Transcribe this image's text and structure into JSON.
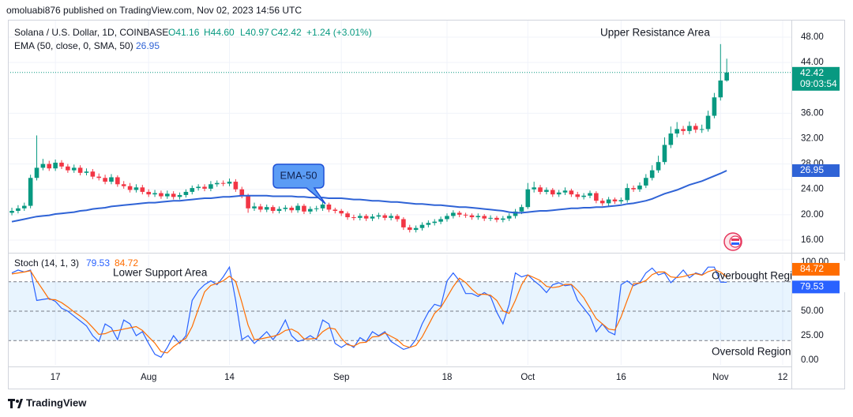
{
  "header": "omoluabi876 published on TradingView.com, Nov 02, 2023 14:56 UTC",
  "footer": "TradingView",
  "chart_data": [
    {
      "type": "candlestick",
      "title": "Solana / U.S. Dollar, 1D, COINBASE",
      "readout": [
        "O41.16",
        "H44.60",
        "L40.97",
        "C42.42",
        "+1.24 (+3.01%)"
      ],
      "countdown": "09:03:54",
      "annotations": [
        "Upper Resistance Area",
        "EMA-50"
      ],
      "up_color": "#089981",
      "down_color": "#f23645",
      "grid": true,
      "xlim": [
        -0.64,
        125.4
      ],
      "xticks": [
        {
          "value": 7,
          "label": "17"
        },
        {
          "value": 22,
          "label": "Aug"
        },
        {
          "value": 35,
          "label": "14"
        },
        {
          "value": 53,
          "label": "Sep"
        },
        {
          "value": 70,
          "label": "18"
        },
        {
          "value": 83,
          "label": "Oct"
        },
        {
          "value": 98,
          "label": "16"
        },
        {
          "value": 114,
          "label": "Nov"
        },
        {
          "value": 124,
          "label": "12"
        }
      ],
      "ylim": [
        14.25,
        50.74
      ],
      "yticks": [
        {
          "value": 16,
          "label": "16.00"
        },
        {
          "value": 20,
          "label": "20.00"
        },
        {
          "value": 24,
          "label": "24.00"
        },
        {
          "value": 28,
          "label": "28.00"
        },
        {
          "value": 32,
          "label": "32.00"
        },
        {
          "value": 36,
          "label": "36.00"
        },
        {
          "value": 44,
          "label": "44.00"
        },
        {
          "value": 48,
          "label": "48.00"
        }
      ],
      "open": [
        20.3,
        20.6,
        21.0,
        21.4,
        25.8,
        27.4,
        28.0,
        27.3,
        28.2,
        27.6,
        27.0,
        27.4,
        26.6,
        26.8,
        26.0,
        25.8,
        25.2,
        25.9,
        24.8,
        24.5,
        23.9,
        24.3,
        23.6,
        23.2,
        23.4,
        22.9,
        23.3,
        22.8,
        23.1,
        23.6,
        24.2,
        24.4,
        24.1,
        24.8,
        25.0,
        24.9,
        25.2,
        24.0,
        23.0,
        21.0,
        21.3,
        20.8,
        21.2,
        20.6,
        20.9,
        21.1,
        20.7,
        21.4,
        20.5,
        20.9,
        21.0,
        21.6,
        20.8,
        20.6,
        20.2,
        19.6,
        19.5,
        19.8,
        19.4,
        19.7,
        19.9,
        19.5,
        19.8,
        19.3,
        18.0,
        17.6,
        17.9,
        18.4,
        18.7,
        18.9,
        19.3,
        19.8,
        20.3,
        20.0,
        19.9,
        19.6,
        19.8,
        19.4,
        19.5,
        19.2,
        19.4,
        19.8,
        20.5,
        21.2,
        24.0,
        24.3,
        23.6,
        23.9,
        23.2,
        23.5,
        23.8,
        23.2,
        22.8,
        23.0,
        23.4,
        22.2,
        21.8,
        22.4,
        22.1,
        22.3,
        24.2,
        24.0,
        24.6,
        25.8,
        27.0,
        28.3,
        31.0,
        32.8,
        33.5,
        33.2,
        34.0,
        33.4,
        33.5,
        35.6,
        38.5,
        41.16
      ],
      "high": [
        21.1,
        21.5,
        21.9,
        26.3,
        32.5,
        28.8,
        28.5,
        28.7,
        28.6,
        28.0,
        27.9,
        27.8,
        27.3,
        27.2,
        26.5,
        26.3,
        26.4,
        26.2,
        25.3,
        25.0,
        24.8,
        24.7,
        24.0,
        23.9,
        23.8,
        23.8,
        23.7,
        23.5,
        24.0,
        24.6,
        24.8,
        24.8,
        25.3,
        25.4,
        25.4,
        25.7,
        25.6,
        24.4,
        23.3,
        21.9,
        21.7,
        21.6,
        21.5,
        21.3,
        21.5,
        21.4,
        21.8,
        21.7,
        21.3,
        21.4,
        22.2,
        21.9,
        21.1,
        20.9,
        20.5,
        20.0,
        20.2,
        20.1,
        20.1,
        20.3,
        20.2,
        20.2,
        20.1,
        19.6,
        18.4,
        18.3,
        18.8,
        19.1,
        19.3,
        19.7,
        20.2,
        20.7,
        20.6,
        20.3,
        20.2,
        20.2,
        20.1,
        19.9,
        19.8,
        19.8,
        20.2,
        20.9,
        21.6,
        25.0,
        25.2,
        24.7,
        24.3,
        24.2,
        23.9,
        24.3,
        24.1,
        23.6,
        23.4,
        23.8,
        23.7,
        22.6,
        22.8,
        22.7,
        22.7,
        24.9,
        24.6,
        25.1,
        26.4,
        27.8,
        29.3,
        32.2,
        33.9,
        34.6,
        34.0,
        34.7,
        34.4,
        34.2,
        36.4,
        39.2,
        46.9,
        44.6
      ],
      "low": [
        19.9,
        20.2,
        20.6,
        21.0,
        25.4,
        27.0,
        26.9,
        26.9,
        27.2,
        26.6,
        26.6,
        26.2,
        26.2,
        25.6,
        25.4,
        24.8,
        24.8,
        24.4,
        24.1,
        23.5,
        23.5,
        23.2,
        22.8,
        22.8,
        22.5,
        22.5,
        22.4,
        22.4,
        22.7,
        23.2,
        23.8,
        23.7,
        23.7,
        24.4,
        24.5,
        24.5,
        23.6,
        22.6,
        20.3,
        20.6,
        20.4,
        20.4,
        20.2,
        20.2,
        20.5,
        20.3,
        20.3,
        20.1,
        20.1,
        20.5,
        20.6,
        20.4,
        20.2,
        19.8,
        19.2,
        19.1,
        19.1,
        19.0,
        19.0,
        19.3,
        19.1,
        19.1,
        18.9,
        17.6,
        17.2,
        17.2,
        17.5,
        18.0,
        18.3,
        18.5,
        18.9,
        19.4,
        19.6,
        19.5,
        19.2,
        19.2,
        19.0,
        19.0,
        18.8,
        18.8,
        19.0,
        19.4,
        20.1,
        20.9,
        23.5,
        23.2,
        23.2,
        22.8,
        22.8,
        23.1,
        22.8,
        22.4,
        22.4,
        22.6,
        21.8,
        21.4,
        21.4,
        21.7,
        21.7,
        21.9,
        23.6,
        23.6,
        24.2,
        25.4,
        26.6,
        27.9,
        30.5,
        32.2,
        32.6,
        32.7,
        32.9,
        32.9,
        33.1,
        35.2,
        38.0,
        40.97
      ],
      "close": [
        20.6,
        21.0,
        21.4,
        25.8,
        27.4,
        28.0,
        27.3,
        28.2,
        27.6,
        27.0,
        27.4,
        26.6,
        26.8,
        26.0,
        25.8,
        25.2,
        25.9,
        24.8,
        24.5,
        23.9,
        24.3,
        23.6,
        23.2,
        23.4,
        22.9,
        23.3,
        22.8,
        23.1,
        23.6,
        24.2,
        24.4,
        24.1,
        24.8,
        25.0,
        24.9,
        25.2,
        24.0,
        23.0,
        21.0,
        21.3,
        20.8,
        21.2,
        20.6,
        20.9,
        21.1,
        20.7,
        21.4,
        20.5,
        20.9,
        21.0,
        21.6,
        20.8,
        20.6,
        20.2,
        19.6,
        19.5,
        19.8,
        19.4,
        19.7,
        19.9,
        19.5,
        19.8,
        19.3,
        18.0,
        17.6,
        17.9,
        18.4,
        18.7,
        18.9,
        19.3,
        19.8,
        20.3,
        20.0,
        19.9,
        19.6,
        19.8,
        19.4,
        19.5,
        19.2,
        19.4,
        19.8,
        20.5,
        21.2,
        24.0,
        24.3,
        23.6,
        23.9,
        23.2,
        23.5,
        23.8,
        23.2,
        22.8,
        23.0,
        23.4,
        22.2,
        21.8,
        22.4,
        22.1,
        22.3,
        24.2,
        24.0,
        24.6,
        25.8,
        27.0,
        28.3,
        31.0,
        32.8,
        33.5,
        33.2,
        34.0,
        33.4,
        33.5,
        35.6,
        38.5,
        41.16,
        42.42
      ],
      "series": [
        {
          "name": "EMA (50, close, 0, SMA, 50)",
          "color": "#2f63d6",
          "values": [
            18.9,
            19.1,
            19.3,
            19.5,
            19.7,
            19.8,
            19.9,
            20.1,
            20.2,
            20.3,
            20.4,
            20.6,
            20.7,
            20.9,
            21.0,
            21.1,
            21.3,
            21.4,
            21.5,
            21.6,
            21.7,
            21.8,
            21.9,
            21.9,
            22.0,
            22.1,
            22.2,
            22.2,
            22.3,
            22.4,
            22.5,
            22.6,
            22.6,
            22.7,
            22.8,
            22.8,
            22.9,
            23.0,
            23.0,
            23.0,
            23.0,
            23.0,
            22.9,
            22.9,
            22.9,
            22.9,
            22.8,
            22.8,
            22.7,
            22.7,
            22.7,
            22.6,
            22.6,
            22.6,
            22.5,
            22.4,
            22.4,
            22.3,
            22.2,
            22.2,
            22.1,
            22.0,
            22.0,
            21.9,
            21.8,
            21.7,
            21.7,
            21.6,
            21.5,
            21.5,
            21.4,
            21.3,
            21.2,
            21.2,
            21.1,
            21.0,
            20.9,
            20.8,
            20.7,
            20.6,
            20.4,
            20.3,
            20.3,
            20.4,
            20.5,
            20.6,
            20.6,
            20.7,
            20.8,
            20.9,
            21.0,
            21.0,
            21.1,
            21.1,
            21.2,
            21.2,
            21.3,
            21.4,
            21.5,
            21.7,
            21.8,
            22.0,
            22.2,
            22.5,
            22.9,
            23.3,
            23.6,
            23.9,
            24.3,
            24.7,
            25.0,
            25.3,
            25.7,
            26.1,
            26.5,
            26.95
          ]
        }
      ]
    },
    {
      "type": "line",
      "title": "Stoch (14, 1, 3)",
      "annotations": [
        "Lower Support Area",
        "Overbought Region",
        "Oversold Region"
      ],
      "ylim": [
        -4.84,
        108.06
      ],
      "yticks": [
        {
          "value": 0,
          "label": "0.00"
        },
        {
          "value": 25,
          "label": "25.00"
        },
        {
          "value": 50,
          "label": "50.00"
        },
        {
          "value": 100,
          "label": "100.00"
        }
      ],
      "levels": [
        80,
        50,
        20
      ],
      "series": [
        {
          "color": "#2962ff",
          "values": [
            89,
            92,
            90,
            92,
            61,
            62,
            63,
            60,
            53,
            50,
            45,
            40,
            35,
            25,
            19,
            37,
            33,
            21,
            41,
            37,
            25,
            29,
            17,
            6,
            3,
            13,
            25,
            17,
            25,
            61,
            71,
            77,
            81,
            77,
            85,
            95,
            61,
            21,
            25,
            17,
            23,
            29,
            21,
            29,
            41,
            25,
            19,
            21,
            25,
            21,
            41,
            37,
            17,
            13,
            17,
            13,
            23,
            19,
            29,
            25,
            29,
            19,
            15,
            11,
            13,
            21,
            37,
            49,
            57,
            55,
            81,
            89,
            81,
            68,
            68,
            65,
            69,
            65,
            49,
            37,
            57,
            89,
            85,
            87,
            81,
            76,
            69,
            77,
            79,
            76,
            77,
            61,
            53,
            45,
            29,
            37,
            29,
            26,
            77,
            81,
            76,
            79,
            89,
            94,
            87,
            89,
            79,
            85,
            92,
            84,
            89,
            87,
            95,
            95,
            79.63,
            79.53
          ]
        },
        {
          "color": "#ff6d00",
          "values": [
            88,
            89,
            90,
            91.3,
            81,
            71.7,
            62,
            61.7,
            58.7,
            54.3,
            49.3,
            45,
            40,
            33.3,
            26.3,
            27,
            29.7,
            30.3,
            31.7,
            33,
            34.3,
            30.3,
            23.7,
            17.3,
            8.7,
            7.3,
            13.7,
            18.3,
            22.3,
            34.3,
            52.3,
            69.7,
            76.3,
            78.3,
            81,
            85.7,
            80.3,
            59,
            35.7,
            21,
            21.7,
            23,
            24.3,
            26.3,
            30.3,
            31.7,
            28.3,
            21.7,
            21.7,
            22.3,
            29,
            33,
            31.7,
            22.3,
            15.7,
            14.3,
            17.7,
            18.3,
            23.7,
            24.3,
            27.7,
            24.3,
            21,
            15,
            13,
            15,
            23.7,
            35.7,
            47.7,
            53.7,
            64.3,
            75,
            83.7,
            79.3,
            72.3,
            67,
            67.3,
            66.3,
            61,
            50.3,
            47.7,
            61,
            77,
            87,
            84.3,
            81.3,
            75.3,
            74,
            75,
            77.3,
            77.3,
            71.3,
            63.7,
            53,
            42.3,
            37,
            31.7,
            30.7,
            44,
            61.3,
            78,
            78.7,
            81.3,
            87.3,
            90,
            90,
            85,
            84.3,
            85.3,
            87,
            88.3,
            86.7,
            90.3,
            92.3,
            89.9,
            84.72
          ]
        }
      ]
    }
  ]
}
